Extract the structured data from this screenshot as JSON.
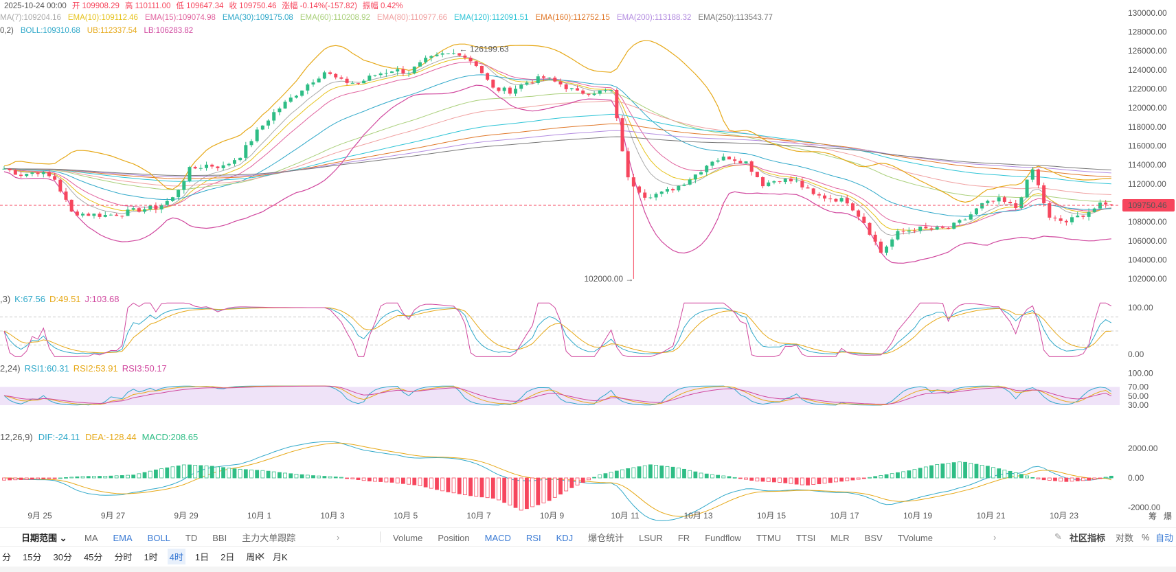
{
  "colors": {
    "up": "#2EBD85",
    "down": "#F6465D",
    "accent": "#3B7BD4"
  },
  "header": {
    "line1": [
      {
        "t": "2025-10-24 00:00",
        "c": "#555"
      },
      {
        "t": "开 109908.29",
        "c": "#F6465D"
      },
      {
        "t": "高 110111.00",
        "c": "#F6465D"
      },
      {
        "t": "低 109647.34",
        "c": "#F6465D"
      },
      {
        "t": "收 109750.46",
        "c": "#F6465D"
      },
      {
        "t": "涨幅 -0.14%(-157.82)",
        "c": "#F6465D"
      },
      {
        "t": "振幅 0.42%",
        "c": "#F6465D"
      }
    ],
    "line2": [
      {
        "t": "MA(7):109204.16",
        "c": "#aaaaaa"
      },
      {
        "t": "EMA(10):109112.46",
        "c": "#E6C21A"
      },
      {
        "t": "EMA(15):109074.98",
        "c": "#E0619D"
      },
      {
        "t": "EMA(30):109175.08",
        "c": "#2FA8C9"
      },
      {
        "t": "EMA(60):110208.92",
        "c": "#A9CF79"
      },
      {
        "t": "EMA(80):110977.66",
        "c": "#F0A0A0"
      },
      {
        "t": "EMA(120):112091.51",
        "c": "#2EC4D6"
      },
      {
        "t": "EMA(160):112752.15",
        "c": "#E0782A"
      },
      {
        "t": "EMA(200):113188.32",
        "c": "#B38CE0"
      },
      {
        "t": "EMA(250):113543.77",
        "c": "#777777"
      }
    ],
    "line3": [
      {
        "t": "0,2)",
        "c": "#555"
      },
      {
        "t": "BOLL:109310.68",
        "c": "#2FA8C9"
      },
      {
        "t": "UB:112337.54",
        "c": "#E6A817"
      },
      {
        "t": "LB:106283.82",
        "c": "#D0479E"
      }
    ]
  },
  "annotations": {
    "high": "← 126199.63",
    "low": "102000.00 →",
    "price": "109750.46"
  },
  "kdj": {
    "prefix": ",3)",
    "k": "K:67.56",
    "d": "D:49.51",
    "j": "J:103.68"
  },
  "rsi": {
    "prefix": "2,24)",
    "r1": "RSI1:60.31",
    "r2": "RSI2:53.91",
    "r3": "RSI3:50.17"
  },
  "macd": {
    "prefix": "12,26,9)",
    "dif": "DIF:-24.11",
    "dea": "DEA:-128.44",
    "macd": "MACD:208.65"
  },
  "axis": {
    "price_ticks": [
      "130000.00",
      "128000.00",
      "126000.00",
      "124000.00",
      "122000.00",
      "120000.00",
      "118000.00",
      "116000.00",
      "114000.00",
      "112000.00",
      "110000.00",
      "108000.00",
      "106000.00",
      "104000.00",
      "102000.00"
    ],
    "kdj_ticks": [
      "100.00",
      "0.00"
    ],
    "rsi_ticks": [
      "100.00",
      "70.00",
      "50.00",
      "30.00"
    ],
    "macd_ticks": [
      "2000.00",
      "0.00",
      "-2000.00"
    ],
    "dates": [
      "9月 25",
      "9月 27",
      "9月 29",
      "10月 1",
      "10月 3",
      "10月 5",
      "10月 7",
      "10月 9",
      "10月 11",
      "10月 13",
      "10月 15",
      "10月 17",
      "10月 19",
      "10月 21",
      "10月 23"
    ],
    "corner": [
      "筹",
      "爆"
    ]
  },
  "toolbar1": {
    "range": "日期范围",
    "main_indicators": [
      "MA",
      "EMA",
      "BOLL",
      "TD",
      "BBI",
      "主力大单跟踪"
    ],
    "sub_indicators": [
      "Volume",
      "Position",
      "MACD",
      "RSI",
      "KDJ",
      "爆仓统计",
      "LSUR",
      "FR",
      "Fundflow",
      "TTMU",
      "TTSI",
      "MLR",
      "BSV",
      "TVolume"
    ],
    "community": "社区指标",
    "log": "对数",
    "pct": "%",
    "auto": "自动"
  },
  "toolbar2": {
    "intervals": [
      "分",
      "15分",
      "30分",
      "45分",
      "分时",
      "1时",
      "4时",
      "1日",
      "2日",
      "周K",
      "月K"
    ],
    "active": "4时"
  },
  "chart_data": {
    "type": "candlestick",
    "interval": "4时",
    "dates": [
      "9月 25",
      "9月 27",
      "9月 29",
      "10月 1",
      "10月 3",
      "10月 5",
      "10月 7",
      "10月 9",
      "10月 11",
      "10月 13",
      "10月 15",
      "10月 17",
      "10月 19",
      "10月 21",
      "10月 23"
    ],
    "ylim": [
      101000,
      130500
    ],
    "last": {
      "open": 109908.29,
      "high": 110111.0,
      "low": 109647.34,
      "close": 109750.46
    },
    "marked_high": 126199.63,
    "marked_low": 102000.0,
    "trend_closes": [
      113600,
      113000,
      113300,
      112500,
      109000,
      108800,
      108700,
      108900,
      109300,
      109500,
      110500,
      113500,
      114000,
      113800,
      115000,
      117500,
      119500,
      121000,
      122500,
      123800,
      122800,
      122600,
      123500,
      124000,
      123800,
      125000,
      125600,
      125800,
      124600,
      122000,
      121800,
      122700,
      123200,
      122500,
      121600,
      121700,
      121800,
      112500,
      110800,
      111000,
      111800,
      113000,
      114500,
      114800,
      114300,
      112000,
      112500,
      112200,
      110800,
      110500,
      110200,
      108000,
      104800,
      106800,
      107300,
      107200,
      107300,
      108300,
      109800,
      110300,
      109500,
      113500,
      108300,
      108000,
      108800,
      109750
    ],
    "kdj": {
      "k": 67.56,
      "d": 49.51,
      "j": 103.68
    },
    "rsi": {
      "rsi1": 60.31,
      "rsi2": 53.91,
      "rsi3": 50.17,
      "band": [
        30,
        70
      ]
    },
    "macd": {
      "dif": -24.11,
      "dea": -128.44,
      "macd": 208.65,
      "hist_trend": [
        -150,
        -100,
        -20,
        100,
        120,
        200,
        600,
        900,
        800,
        600,
        500,
        300,
        150,
        50,
        -200,
        -300,
        -500,
        -900,
        -1200,
        -1400,
        -2200,
        -1600,
        -600,
        200,
        600,
        900,
        700,
        300,
        100,
        -200,
        -300,
        -500,
        -300,
        -100,
        200,
        500,
        900,
        1100,
        800,
        400,
        -100,
        -250,
        -150,
        200
      ]
    }
  }
}
